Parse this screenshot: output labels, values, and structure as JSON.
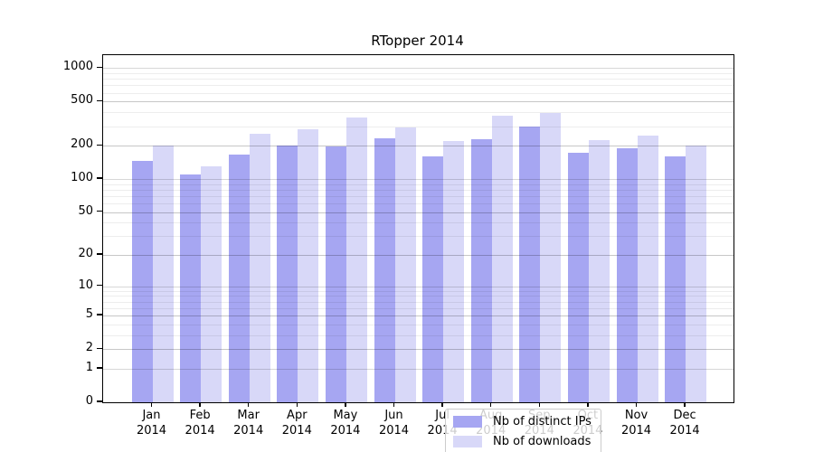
{
  "title": "RTopper 2014",
  "chart_data": {
    "type": "bar",
    "title": "RTopper 2014",
    "scale_y": "log1p",
    "ylim": [
      0,
      1300
    ],
    "y_ticks": [
      0,
      1,
      2,
      5,
      10,
      20,
      50,
      100,
      200,
      500,
      1000
    ],
    "grid": true,
    "legend_position": "lower center",
    "categories": [
      "Jan 2014",
      "Feb 2014",
      "Mar 2014",
      "Apr 2014",
      "May 2014",
      "Jun 2014",
      "Jul 2014",
      "Aug 2014",
      "Sep 2014",
      "Oct 2014",
      "Nov 2014",
      "Dec 2014"
    ],
    "series": [
      {
        "name": "Nb of distinct IPs",
        "color": "#a6a6f2",
        "values": [
          145,
          110,
          168,
          200,
          197,
          235,
          162,
          230,
          298,
          172,
          190,
          160
        ]
      },
      {
        "name": "Nb of downloads",
        "color": "#d8d8f8",
        "values": [
          200,
          130,
          255,
          280,
          360,
          290,
          220,
          375,
          395,
          224,
          245,
          202
        ]
      }
    ]
  },
  "colors": {
    "axis": "#000000",
    "grid_major": "#d8d8d8",
    "grid_minor": "#ededed",
    "legend_border": "#cccccc"
  }
}
